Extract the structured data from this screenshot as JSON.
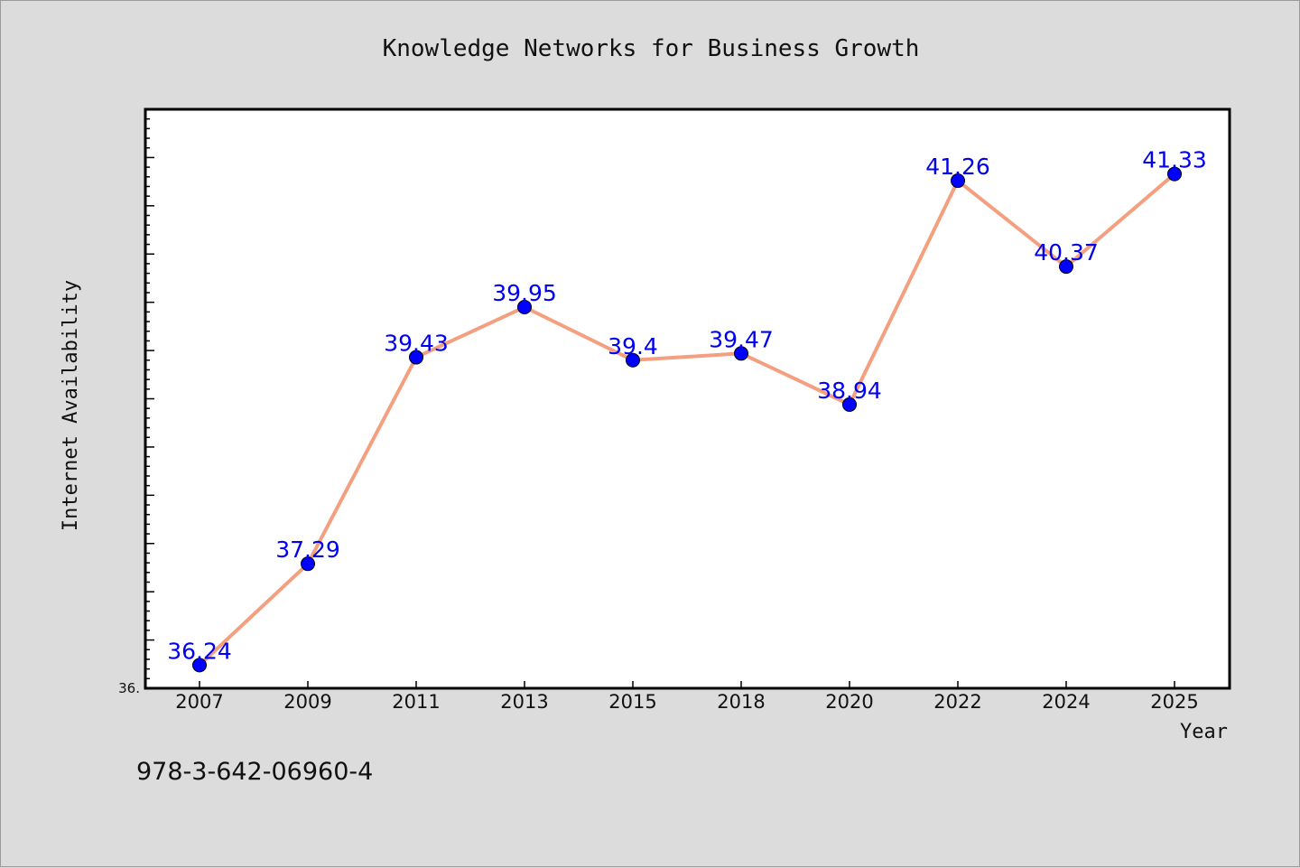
{
  "chart_data": {
    "type": "line",
    "title": "Knowledge Networks for Business Growth",
    "xlabel": "Year",
    "ylabel": "Internet Availability",
    "categories": [
      "2007",
      "2009",
      "2011",
      "2013",
      "2015",
      "2018",
      "2020",
      "2022",
      "2024",
      "2025"
    ],
    "values": [
      36.24,
      37.29,
      39.43,
      39.95,
      39.4,
      39.47,
      38.94,
      41.26,
      40.37,
      41.33
    ],
    "data_labels": [
      "36.24",
      "37.29",
      "39.43",
      "39.95",
      "39.4",
      "39.47",
      "38.94",
      "41.26",
      "40.37",
      "41.33"
    ],
    "ylim": [
      36.0,
      42.0
    ],
    "y_tick_label": "36.",
    "grid": false,
    "legend": "none",
    "line_color": "#f4a080",
    "marker_color": "#0000ff",
    "label_color": "#0000ee"
  },
  "footer": {
    "isbn": "978-3-642-06960-4"
  }
}
